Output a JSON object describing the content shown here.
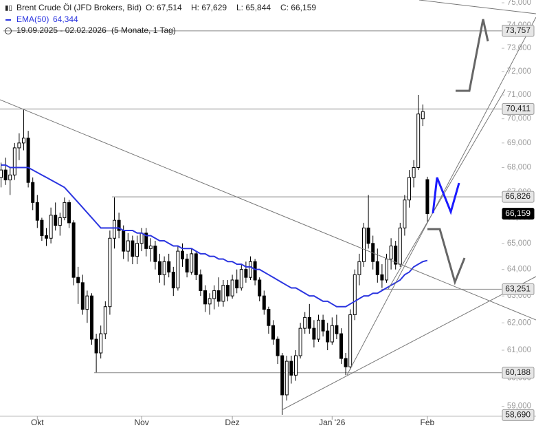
{
  "chart_data": {
    "type": "candlestick",
    "title": "Brent Crude Öl (JFD Brokers, Bid)",
    "ohlc_labels": [
      "O: 67,514",
      "H: 67,629",
      "L: 65,844",
      "C: 66,159"
    ],
    "period": "19.09.2025 - 02.02.2026",
    "period_note": "(5 Monate, 1 Tag)",
    "categories": [
      null,
      null,
      null,
      null,
      null,
      null,
      null,
      null,
      "Okt",
      null,
      null,
      null,
      null,
      null,
      null,
      null,
      null,
      null,
      null,
      null,
      null,
      null,
      null,
      null,
      null,
      null,
      null,
      null,
      null,
      null,
      null,
      "Nov",
      null,
      null,
      null,
      null,
      null,
      null,
      null,
      null,
      null,
      null,
      null,
      null,
      null,
      null,
      null,
      null,
      null,
      null,
      null,
      "Dez",
      null,
      null,
      null,
      null,
      null,
      null,
      null,
      null,
      null,
      null,
      null,
      null,
      null,
      null,
      null,
      null,
      null,
      null,
      null,
      null,
      null,
      "Jan '26",
      null,
      null,
      null,
      null,
      null,
      null,
      null,
      null,
      null,
      null,
      null,
      null,
      null,
      null,
      null,
      null,
      null,
      null,
      null,
      null,
      "Feb"
    ],
    "open": [
      67.6,
      67.9,
      67.5,
      67.7,
      68.8,
      69.0,
      69.2,
      67.4,
      66.6,
      65.9,
      65.3,
      65.2,
      66.1,
      65.7,
      66.0,
      66.6,
      65.8,
      63.7,
      63.5,
      62.5,
      63.0,
      61.4,
      60.9,
      61.6,
      62.6,
      65.2,
      65.9,
      65.5,
      64.7,
      65.1,
      64.5,
      65.0,
      65.4,
      64.8,
      64.9,
      64.3,
      63.8,
      64.3,
      63.9,
      63.3,
      64.7,
      64.4,
      63.9,
      64.6,
      63.8,
      63.2,
      62.7,
      62.9,
      63.2,
      62.8,
      63.4,
      63.0,
      63.6,
      63.3,
      64.0,
      63.7,
      64.3,
      63.6,
      63.0,
      62.5,
      61.9,
      61.4,
      60.8,
      59.4,
      60.6,
      60.1,
      60.8,
      61.8,
      62.2,
      61.8,
      61.4,
      62.1,
      61.7,
      61.3,
      61.9,
      61.6,
      60.7,
      60.4,
      62.3,
      63.8,
      64.3,
      65.6,
      65.0,
      64.3,
      63.8,
      63.6,
      64.4,
      64.9,
      64.2,
      65.6,
      66.7,
      67.6,
      68.0,
      70.0,
      67.514
    ],
    "high": [
      68.2,
      68.4,
      68.0,
      69.0,
      69.4,
      70.4,
      69.5,
      67.6,
      66.9,
      66.0,
      65.6,
      66.4,
      66.6,
      66.2,
      66.8,
      66.7,
      65.9,
      64.1,
      63.8,
      63.2,
      63.1,
      61.6,
      61.9,
      62.8,
      65.5,
      66.8,
      66.2,
      65.7,
      65.4,
      65.3,
      65.3,
      65.6,
      65.6,
      65.2,
      65.1,
      64.6,
      64.5,
      64.6,
      64.1,
      64.9,
      65.0,
      64.6,
      64.8,
      64.7,
      64.0,
      63.4,
      63.1,
      63.4,
      63.7,
      63.6,
      63.6,
      63.8,
      64.0,
      64.2,
      64.3,
      64.5,
      64.4,
      63.7,
      63.2,
      62.6,
      62.1,
      61.5,
      60.9,
      60.8,
      60.8,
      61.0,
      62.0,
      62.4,
      62.7,
      62.1,
      62.3,
      62.3,
      62.0,
      62.2,
      62.3,
      61.8,
      60.9,
      62.5,
      64.0,
      64.6,
      65.8,
      66.9,
      65.3,
      64.8,
      64.2,
      64.6,
      65.2,
      65.1,
      65.8,
      66.9,
      67.9,
      68.3,
      71.0,
      70.6,
      67.629
    ],
    "low": [
      67.2,
      67.3,
      66.9,
      67.5,
      68.3,
      68.7,
      67.2,
      66.3,
      65.6,
      65.1,
      64.9,
      65.0,
      65.5,
      65.3,
      65.9,
      65.6,
      63.4,
      62.7,
      62.3,
      62.0,
      61.2,
      60.2,
      60.7,
      61.4,
      62.3,
      64.8,
      65.2,
      64.4,
      64.3,
      64.2,
      64.2,
      64.7,
      64.5,
      64.3,
      64.0,
      63.5,
      63.4,
      63.7,
      63.0,
      63.2,
      64.1,
      63.7,
      63.8,
      63.6,
      63.0,
      62.4,
      62.3,
      62.5,
      62.6,
      62.6,
      62.8,
      62.9,
      63.1,
      63.2,
      63.5,
      63.6,
      63.4,
      62.8,
      62.3,
      61.6,
      61.2,
      60.5,
      58.7,
      59.2,
      59.8,
      59.9,
      60.7,
      61.6,
      61.6,
      61.1,
      61.3,
      61.5,
      61.0,
      61.2,
      61.4,
      60.5,
      60.1,
      60.3,
      62.1,
      63.4,
      64.1,
      64.8,
      64.0,
      63.5,
      63.3,
      63.5,
      64.0,
      64.0,
      64.1,
      65.3,
      66.4,
      67.2,
      67.9,
      69.7,
      65.844
    ],
    "close": [
      67.9,
      67.5,
      67.7,
      68.8,
      69.0,
      69.2,
      67.4,
      66.6,
      65.9,
      65.3,
      65.2,
      66.1,
      65.7,
      66.0,
      66.6,
      65.8,
      63.7,
      63.5,
      62.5,
      63.0,
      61.4,
      60.9,
      61.6,
      62.6,
      65.2,
      65.9,
      65.5,
      64.7,
      65.1,
      64.5,
      65.0,
      65.4,
      64.8,
      64.9,
      64.3,
      63.8,
      64.3,
      63.9,
      63.3,
      64.7,
      64.4,
      63.9,
      64.6,
      63.8,
      63.2,
      62.7,
      62.9,
      63.2,
      62.8,
      63.4,
      63.0,
      63.6,
      63.3,
      64.0,
      63.7,
      64.3,
      63.6,
      63.0,
      62.5,
      61.9,
      61.4,
      60.8,
      59.4,
      60.6,
      60.1,
      60.8,
      61.8,
      62.2,
      61.8,
      61.4,
      62.1,
      61.7,
      61.3,
      61.9,
      61.6,
      60.7,
      60.4,
      62.3,
      63.8,
      64.3,
      65.6,
      65.0,
      64.3,
      63.8,
      63.6,
      64.4,
      64.9,
      64.2,
      65.6,
      66.7,
      67.6,
      68.0,
      70.2,
      70.3,
      66.159
    ],
    "series": [
      {
        "name": "EMA(50)",
        "last_label": "64,344",
        "color": "#2b35e0",
        "values": [
          68.1,
          68.1,
          68.0,
          68.0,
          68.0,
          68.0,
          68.0,
          67.9,
          67.8,
          67.7,
          67.6,
          67.5,
          67.4,
          67.3,
          67.2,
          67.0,
          66.8,
          66.6,
          66.4,
          66.2,
          66.0,
          65.8,
          65.6,
          65.6,
          65.6,
          65.6,
          65.6,
          65.5,
          65.5,
          65.5,
          65.4,
          65.4,
          65.3,
          65.3,
          65.2,
          65.1,
          65.1,
          65.0,
          64.9,
          64.9,
          64.8,
          64.8,
          64.8,
          64.7,
          64.6,
          64.6,
          64.5,
          64.5,
          64.4,
          64.4,
          64.3,
          64.3,
          64.2,
          64.2,
          64.1,
          64.1,
          64.0,
          64.0,
          63.9,
          63.8,
          63.7,
          63.6,
          63.5,
          63.4,
          63.3,
          63.3,
          63.2,
          63.1,
          63.0,
          63.0,
          62.9,
          62.8,
          62.8,
          62.7,
          62.6,
          62.6,
          62.6,
          62.7,
          62.8,
          62.9,
          63.0,
          63.0,
          63.1,
          63.1,
          63.2,
          63.3,
          63.4,
          63.5,
          63.6,
          63.8,
          63.9,
          64.1,
          64.2,
          64.3,
          64.344
        ]
      }
    ],
    "log_scale": true,
    "ylim": [
      58.65,
      75.125
    ],
    "yticks": [
      {
        "value": 59,
        "label": "59,000"
      },
      {
        "value": 60,
        "label": "60,000"
      },
      {
        "value": 61,
        "label": "61,000"
      },
      {
        "value": 62,
        "label": "62,000"
      },
      {
        "value": 63,
        "label": "63,000"
      },
      {
        "value": 64,
        "label": "64,000"
      },
      {
        "value": 65,
        "label": "65,000"
      },
      {
        "value": 66,
        "label": "66,000"
      },
      {
        "value": 67,
        "label": "67,000"
      },
      {
        "value": 68,
        "label": "68,000"
      },
      {
        "value": 69,
        "label": "69,000"
      },
      {
        "value": 70,
        "label": "70,000"
      },
      {
        "value": 71,
        "label": "71,000"
      },
      {
        "value": 72,
        "label": "72,000"
      },
      {
        "value": 73,
        "label": "73,000"
      },
      {
        "value": 74,
        "label": "74,000"
      },
      {
        "value": 75,
        "label": "75,000"
      }
    ],
    "levels": [
      {
        "value": 73.757,
        "label": "73,757"
      },
      {
        "value": 70.411,
        "label": "70,411"
      },
      {
        "value": 66.826,
        "label": "66,826"
      },
      {
        "value": 66.159,
        "label": "66,159"
      },
      {
        "value": 63.251,
        "label": "63,251"
      },
      {
        "value": 60.188,
        "label": "60,188"
      },
      {
        "value": 58.69,
        "label": "58,690"
      }
    ],
    "up_color": "#ffffff",
    "down_color": "#000000"
  }
}
